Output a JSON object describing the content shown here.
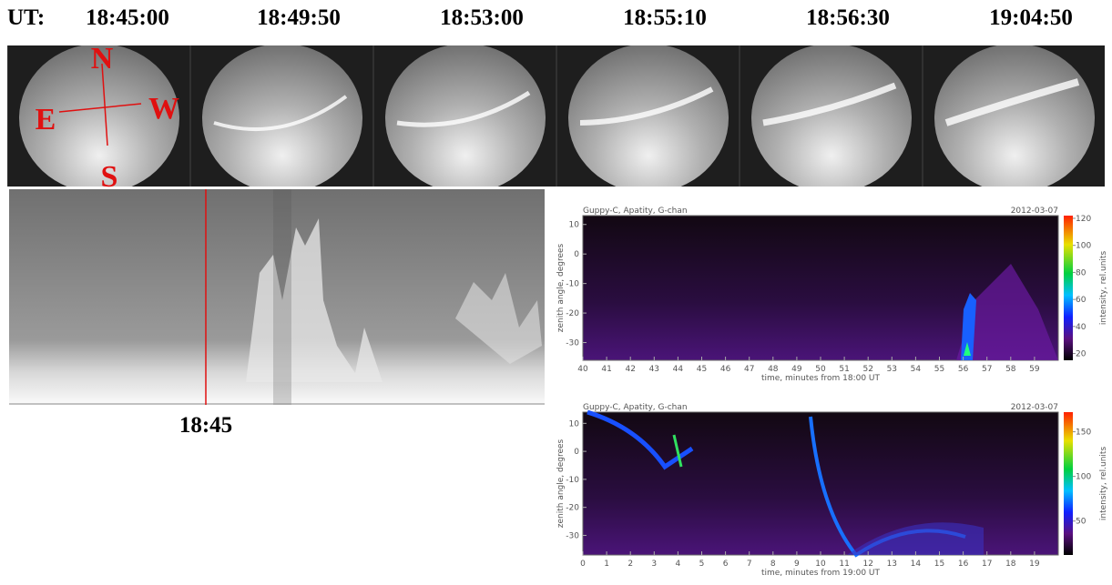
{
  "times_label": "UT:",
  "times": [
    "18:45:00",
    "18:49:50",
    "18:53:00",
    "18:55:10",
    "18:56:30",
    "19:04:50"
  ],
  "compass": {
    "north": "N",
    "east": "E",
    "west": "W",
    "south": "S"
  },
  "keogram": {
    "marker_label": "18:45"
  },
  "spectrograms": [
    {
      "source": "Guppy-C, Apatity, G-chan",
      "date": "2012-03-07",
      "ylabel": "zenith angle, degrees",
      "xlabel": "time, minutes from 18:00 UT",
      "xlim": [
        40,
        60
      ],
      "xticks": [
        40,
        41,
        42,
        43,
        44,
        45,
        46,
        47,
        48,
        49,
        50,
        51,
        52,
        53,
        54,
        55,
        56,
        57,
        58,
        59
      ],
      "ylim": [
        -36,
        13
      ],
      "yticks": [
        10,
        0,
        -10,
        -20,
        -30
      ],
      "colorbar_label": "intensity, rel.units",
      "clim": [
        15,
        122
      ],
      "cticks": [
        20,
        40,
        60,
        80,
        100,
        120
      ]
    },
    {
      "source": "Guppy-C, Apatity, G-chan",
      "date": "2012-03-07",
      "ylabel": "zenith angle, degrees",
      "xlabel": "time, minutes from 19:00 UT",
      "xlim": [
        0,
        20
      ],
      "xticks": [
        0,
        1,
        2,
        3,
        4,
        5,
        6,
        7,
        8,
        9,
        10,
        11,
        12,
        13,
        14,
        15,
        16,
        17,
        18,
        19
      ],
      "ylim": [
        -37,
        14
      ],
      "yticks": [
        10,
        0,
        -10,
        -20,
        -30
      ],
      "colorbar_label": "intensity, rel.units",
      "clim": [
        12,
        172
      ],
      "cticks": [
        50,
        100,
        150
      ]
    }
  ]
}
